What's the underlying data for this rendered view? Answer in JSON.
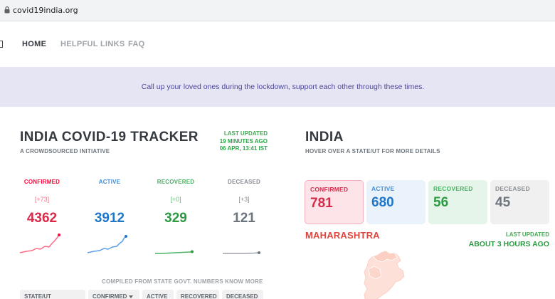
{
  "browser": {
    "url": "covid19india.org"
  },
  "nav": {
    "home": "HOME",
    "helpful_links": "HELPFUL LINKS",
    "faq": "FAQ"
  },
  "banner": {
    "message": "Call up your loved ones during the lockdown, support each other through these times."
  },
  "tracker": {
    "title": "INDIA COVID-19 TRACKER",
    "subtitle": "A CROWDSOURCED INITIATIVE",
    "last_updated_label": "LAST UPDATED",
    "last_updated_ago": "19 MINUTES AGO",
    "last_updated_time": "06 APR, 13:41 IST"
  },
  "stats": {
    "confirmed": {
      "label": "CONFIRMED",
      "delta": "[+73]",
      "value": "4362",
      "color": "#ff073a"
    },
    "active": {
      "label": "ACTIVE",
      "delta": "",
      "value": "3912",
      "color": "#007bff"
    },
    "recovered": {
      "label": "RECOVERED",
      "delta": "[+0]",
      "value": "329",
      "color": "#28a745"
    },
    "deceased": {
      "label": "DECEASED",
      "delta": "[+3]",
      "value": "121",
      "color": "#6c757d"
    }
  },
  "compiled_note": "COMPILED FROM STATE GOVT. NUMBERS KNOW MORE",
  "table": {
    "headers": [
      "STATE/UT",
      "CONFIRMED",
      "ACTIVE",
      "RECOVERED",
      "DECEASED"
    ]
  },
  "map_panel": {
    "title": "INDIA",
    "subtitle": "HOVER OVER A STATE/UT FOR MORE DETAILS",
    "cards": {
      "confirmed": {
        "label": "CONFIRMED",
        "value": "781"
      },
      "active": {
        "label": "ACTIVE",
        "value": "680"
      },
      "recovered": {
        "label": "RECOVERED",
        "value": "56"
      },
      "deceased": {
        "label": "DECEASED",
        "value": "45"
      }
    },
    "state_name": "MAHARASHTRA",
    "state_last_updated_label": "LAST UPDATED",
    "state_last_updated_value": "ABOUT 3 HOURS AGO"
  },
  "icons": {
    "lock": "lock-icon",
    "sort": "sort-desc-icon",
    "map": "india-map"
  }
}
